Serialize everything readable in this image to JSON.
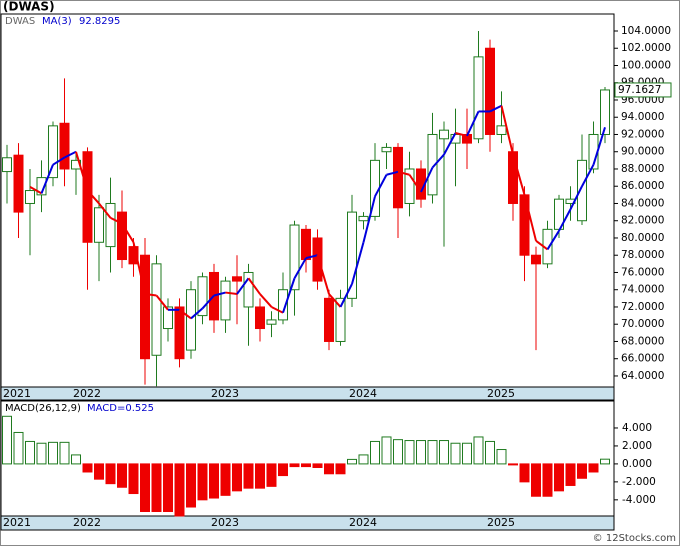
{
  "chart_data": {
    "type": "candlestick",
    "title": "(DWAS)",
    "symbol": "DWAS",
    "watermark": "© 12Stocks.com",
    "x_labels": [
      "2021",
      "2022",
      "2023",
      "2024",
      "2025"
    ],
    "opens": [
      87.7,
      89.6,
      84,
      85,
      87,
      93.3,
      88,
      90,
      79.5,
      79,
      83,
      79,
      78,
      66.4,
      69.5,
      72,
      67,
      71,
      76,
      70.5,
      75.5,
      72,
      72,
      70,
      70.5,
      74,
      81,
      80,
      73,
      68,
      73,
      82,
      82.5,
      90,
      90.5,
      84,
      88,
      85,
      91.5,
      91,
      92,
      91.5,
      102,
      92,
      90,
      85,
      78,
      77,
      81,
      84,
      82,
      88,
      92
    ],
    "highs": [
      90.8,
      91,
      88,
      89,
      93.5,
      98.5,
      90,
      90.5,
      85,
      87,
      85.5,
      80,
      80,
      78,
      73,
      73,
      75,
      76,
      77,
      75.5,
      78,
      77,
      73,
      71.5,
      76,
      82,
      81.5,
      81,
      74,
      74,
      85,
      83,
      91,
      91,
      91,
      90,
      89,
      94.5,
      93.5,
      95,
      95,
      104,
      103,
      97,
      91,
      86,
      79,
      82,
      85,
      86,
      92,
      93.5,
      97.5
    ],
    "lows": [
      84,
      80,
      78,
      83,
      86,
      86,
      85,
      74,
      75,
      76,
      76.5,
      75.5,
      63,
      62.8,
      68,
      65,
      66,
      70,
      69,
      69,
      70,
      67.5,
      68,
      68.5,
      70,
      71,
      76,
      74,
      67,
      67.5,
      72,
      81,
      82,
      88,
      80,
      82.5,
      83.5,
      84,
      79,
      86,
      88,
      91,
      90,
      91,
      82,
      75,
      67,
      76.5,
      80,
      82,
      81.5,
      87.5,
      91
    ],
    "closes": [
      89.3,
      83,
      85.5,
      87,
      93,
      88,
      89,
      79.5,
      83.5,
      84,
      77.5,
      77,
      66,
      77,
      72,
      66,
      74,
      75.5,
      70.5,
      75,
      75,
      76,
      69.5,
      70.5,
      74,
      81.5,
      77.5,
      75,
      68,
      73,
      83,
      82.5,
      89,
      90.5,
      83.5,
      88,
      84.5,
      92,
      92.5,
      92,
      91,
      101,
      92,
      93,
      84,
      78,
      77,
      81,
      84.5,
      84.5,
      89,
      92,
      97.1627
    ],
    "ma": {
      "name": "MA(3)",
      "values": [
        null,
        null,
        85.93,
        85.17,
        88.5,
        89.33,
        90,
        85.5,
        84,
        82.33,
        81.67,
        79.5,
        73.5,
        73.33,
        71.67,
        71.67,
        70.67,
        71.83,
        73.33,
        73.67,
        73.5,
        75.33,
        73.5,
        72,
        71.33,
        75.33,
        77.67,
        78,
        73.5,
        72,
        74.67,
        79.5,
        84.83,
        87.33,
        87.67,
        87.33,
        85.33,
        88.17,
        89.67,
        92.17,
        91.83,
        94.67,
        94.67,
        95.33,
        89.67,
        85,
        79.67,
        78.67,
        80.83,
        83.33,
        86,
        88.5,
        92.8295
      ]
    },
    "ylim": [
      62.72,
      105.97
    ],
    "yticks": [
      {
        "value": 64,
        "label": "64.0000"
      },
      {
        "value": 66,
        "label": "66.0000"
      },
      {
        "value": 68,
        "label": "68.0000"
      },
      {
        "value": 70,
        "label": "70.0000"
      },
      {
        "value": 72,
        "label": "72.0000"
      },
      {
        "value": 74,
        "label": "74.0000"
      },
      {
        "value": 76,
        "label": "76.0000"
      },
      {
        "value": 78,
        "label": "78.0000"
      },
      {
        "value": 80,
        "label": "80.0000"
      },
      {
        "value": 82,
        "label": "82.0000"
      },
      {
        "value": 84,
        "label": "84.0000"
      },
      {
        "value": 86,
        "label": "86.0000"
      },
      {
        "value": 88,
        "label": "88.0000"
      },
      {
        "value": 90,
        "label": "90.0000"
      },
      {
        "value": 92,
        "label": "92.0000"
      },
      {
        "value": 94,
        "label": "94.0000"
      },
      {
        "value": 96,
        "label": "96.0000"
      },
      {
        "value": 98,
        "label": "98.0000"
      },
      {
        "value": 100,
        "label": "100.0000"
      },
      {
        "value": 102,
        "label": "102.0000"
      },
      {
        "value": 104,
        "label": "104.0000"
      }
    ],
    "macd": {
      "name": "MACD(26,12,9)",
      "label": "MACD=0.525",
      "values": [
        5.3,
        3.5,
        2.5,
        2.3,
        2.4,
        2.4,
        1.0,
        -0.9,
        -1.7,
        -2.2,
        -2.6,
        -3.3,
        -5.3,
        -5.3,
        -5.3,
        -5.8,
        -4.8,
        -4.0,
        -3.8,
        -3.5,
        -3.0,
        -2.7,
        -2.7,
        -2.5,
        -1.3,
        -0.3,
        -0.3,
        -0.4,
        -1.1,
        -1.1,
        0.5,
        1.0,
        2.5,
        3.0,
        2.7,
        2.6,
        2.6,
        2.6,
        2.6,
        2.3,
        2.3,
        3.0,
        2.5,
        1.6,
        -0.1,
        -2.0,
        -3.6,
        -3.6,
        -3.0,
        -2.4,
        -1.6,
        -0.9,
        0.525
      ],
      "ylim": [
        -5.8,
        6.78
      ],
      "yticks": [
        {
          "value": 4,
          "label": "4.000"
        },
        {
          "value": 2,
          "label": "2.000"
        },
        {
          "value": 0,
          "label": "0.000"
        },
        {
          "value": -2,
          "label": "-2.000"
        },
        {
          "value": -4,
          "label": "-4.000"
        }
      ]
    }
  }
}
